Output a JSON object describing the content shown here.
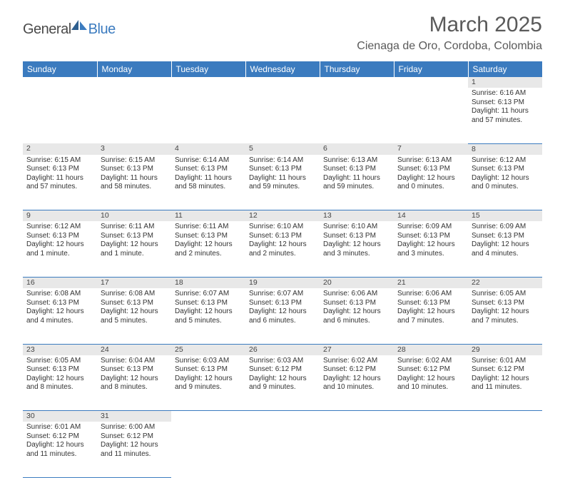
{
  "logo": {
    "general": "General",
    "blue": "Blue"
  },
  "title": "March 2025",
  "location": "Cienaga de Oro, Cordoba, Colombia",
  "colors": {
    "header_bg": "#3b7bbf",
    "header_text": "#ffffff",
    "daynum_bg": "#e8e8e8",
    "cell_border": "#3b7bbf",
    "body_text": "#333333",
    "title_text": "#5a5a5a"
  },
  "daysOfWeek": [
    "Sunday",
    "Monday",
    "Tuesday",
    "Wednesday",
    "Thursday",
    "Friday",
    "Saturday"
  ],
  "weeks": [
    [
      null,
      null,
      null,
      null,
      null,
      null,
      {
        "d": "1",
        "sr": "6:16 AM",
        "ss": "6:13 PM",
        "dl": "11 hours and 57 minutes."
      }
    ],
    [
      {
        "d": "2",
        "sr": "6:15 AM",
        "ss": "6:13 PM",
        "dl": "11 hours and 57 minutes."
      },
      {
        "d": "3",
        "sr": "6:15 AM",
        "ss": "6:13 PM",
        "dl": "11 hours and 58 minutes."
      },
      {
        "d": "4",
        "sr": "6:14 AM",
        "ss": "6:13 PM",
        "dl": "11 hours and 58 minutes."
      },
      {
        "d": "5",
        "sr": "6:14 AM",
        "ss": "6:13 PM",
        "dl": "11 hours and 59 minutes."
      },
      {
        "d": "6",
        "sr": "6:13 AM",
        "ss": "6:13 PM",
        "dl": "11 hours and 59 minutes."
      },
      {
        "d": "7",
        "sr": "6:13 AM",
        "ss": "6:13 PM",
        "dl": "12 hours and 0 minutes."
      },
      {
        "d": "8",
        "sr": "6:12 AM",
        "ss": "6:13 PM",
        "dl": "12 hours and 0 minutes."
      }
    ],
    [
      {
        "d": "9",
        "sr": "6:12 AM",
        "ss": "6:13 PM",
        "dl": "12 hours and 1 minute."
      },
      {
        "d": "10",
        "sr": "6:11 AM",
        "ss": "6:13 PM",
        "dl": "12 hours and 1 minute."
      },
      {
        "d": "11",
        "sr": "6:11 AM",
        "ss": "6:13 PM",
        "dl": "12 hours and 2 minutes."
      },
      {
        "d": "12",
        "sr": "6:10 AM",
        "ss": "6:13 PM",
        "dl": "12 hours and 2 minutes."
      },
      {
        "d": "13",
        "sr": "6:10 AM",
        "ss": "6:13 PM",
        "dl": "12 hours and 3 minutes."
      },
      {
        "d": "14",
        "sr": "6:09 AM",
        "ss": "6:13 PM",
        "dl": "12 hours and 3 minutes."
      },
      {
        "d": "15",
        "sr": "6:09 AM",
        "ss": "6:13 PM",
        "dl": "12 hours and 4 minutes."
      }
    ],
    [
      {
        "d": "16",
        "sr": "6:08 AM",
        "ss": "6:13 PM",
        "dl": "12 hours and 4 minutes."
      },
      {
        "d": "17",
        "sr": "6:08 AM",
        "ss": "6:13 PM",
        "dl": "12 hours and 5 minutes."
      },
      {
        "d": "18",
        "sr": "6:07 AM",
        "ss": "6:13 PM",
        "dl": "12 hours and 5 minutes."
      },
      {
        "d": "19",
        "sr": "6:07 AM",
        "ss": "6:13 PM",
        "dl": "12 hours and 6 minutes."
      },
      {
        "d": "20",
        "sr": "6:06 AM",
        "ss": "6:13 PM",
        "dl": "12 hours and 6 minutes."
      },
      {
        "d": "21",
        "sr": "6:06 AM",
        "ss": "6:13 PM",
        "dl": "12 hours and 7 minutes."
      },
      {
        "d": "22",
        "sr": "6:05 AM",
        "ss": "6:13 PM",
        "dl": "12 hours and 7 minutes."
      }
    ],
    [
      {
        "d": "23",
        "sr": "6:05 AM",
        "ss": "6:13 PM",
        "dl": "12 hours and 8 minutes."
      },
      {
        "d": "24",
        "sr": "6:04 AM",
        "ss": "6:13 PM",
        "dl": "12 hours and 8 minutes."
      },
      {
        "d": "25",
        "sr": "6:03 AM",
        "ss": "6:13 PM",
        "dl": "12 hours and 9 minutes."
      },
      {
        "d": "26",
        "sr": "6:03 AM",
        "ss": "6:12 PM",
        "dl": "12 hours and 9 minutes."
      },
      {
        "d": "27",
        "sr": "6:02 AM",
        "ss": "6:12 PM",
        "dl": "12 hours and 10 minutes."
      },
      {
        "d": "28",
        "sr": "6:02 AM",
        "ss": "6:12 PM",
        "dl": "12 hours and 10 minutes."
      },
      {
        "d": "29",
        "sr": "6:01 AM",
        "ss": "6:12 PM",
        "dl": "12 hours and 11 minutes."
      }
    ],
    [
      {
        "d": "30",
        "sr": "6:01 AM",
        "ss": "6:12 PM",
        "dl": "12 hours and 11 minutes."
      },
      {
        "d": "31",
        "sr": "6:00 AM",
        "ss": "6:12 PM",
        "dl": "12 hours and 11 minutes."
      },
      null,
      null,
      null,
      null,
      null
    ]
  ],
  "labels": {
    "sunrise": "Sunrise:",
    "sunset": "Sunset:",
    "daylight": "Daylight:"
  }
}
